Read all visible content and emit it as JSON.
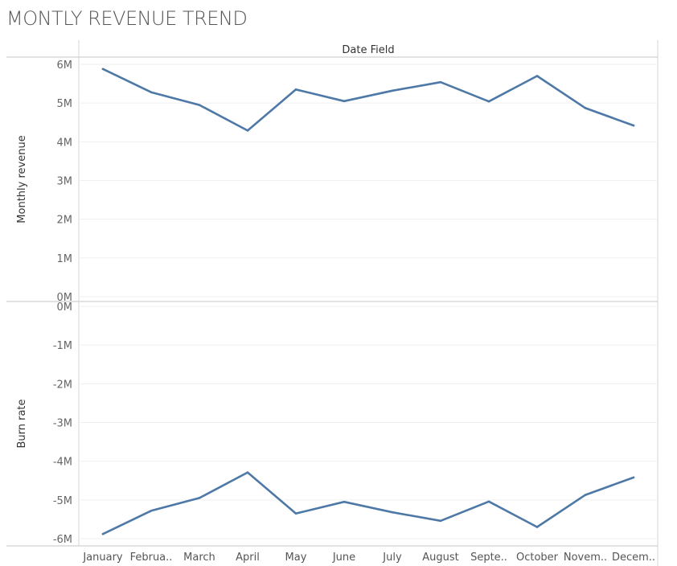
{
  "page": {
    "title": "MONTLY REVENUE TREND"
  },
  "chart_data": {
    "type": "line",
    "column_header": "Date Field",
    "categories": [
      "January",
      "Februa..",
      "March",
      "April",
      "May",
      "June",
      "July",
      "August",
      "Septe..",
      "October",
      "Novem..",
      "Decem.."
    ],
    "line_color": "#4e79a7",
    "grid": true,
    "panels": [
      {
        "ylabel": "Monthly revenue",
        "ylim": [
          0,
          6200000
        ],
        "ticks": [
          6000000,
          5000000,
          4000000,
          3000000,
          2000000,
          1000000,
          0
        ],
        "tick_labels": [
          "6M",
          "5M",
          "4M",
          "3M",
          "2M",
          "1M",
          "0M"
        ],
        "values": [
          5880000,
          5280000,
          4950000,
          4290000,
          5350000,
          5050000,
          5320000,
          5540000,
          5040000,
          5700000,
          4870000,
          4420000
        ]
      },
      {
        "ylabel": "Burn rate",
        "ylim": [
          -6200000,
          0
        ],
        "ticks": [
          0,
          -1000000,
          -2000000,
          -3000000,
          -4000000,
          -5000000,
          -6000000
        ],
        "tick_labels": [
          "0M",
          "-1M",
          "-2M",
          "-3M",
          "-4M",
          "-5M",
          "-6M"
        ],
        "values": [
          -5880000,
          -5280000,
          -4950000,
          -4290000,
          -5350000,
          -5050000,
          -5320000,
          -5540000,
          -5040000,
          -5700000,
          -4870000,
          -4420000
        ]
      }
    ]
  }
}
